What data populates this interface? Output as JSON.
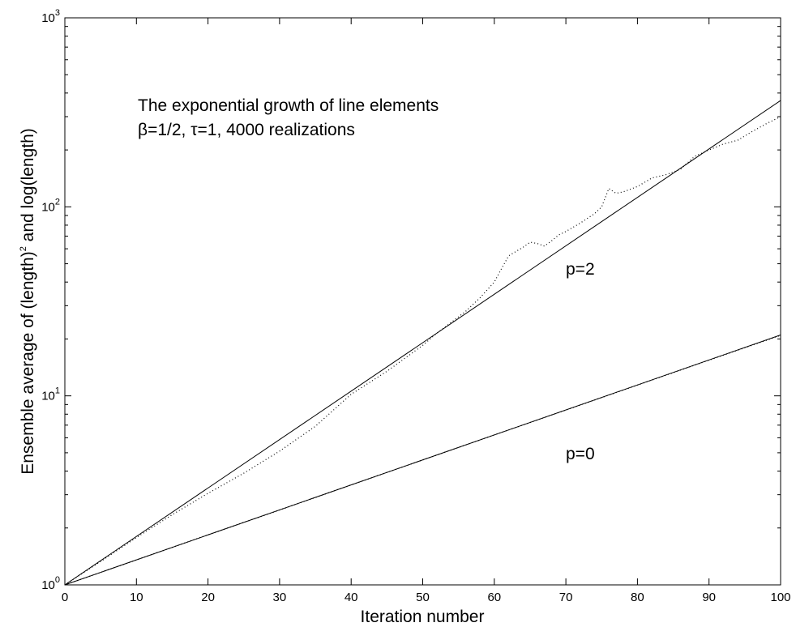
{
  "chart_data": {
    "type": "line",
    "xlabel": "Iteration number",
    "ylabel_parts": [
      "Ensemble average of (length)",
      "2",
      " and log(length)"
    ],
    "y_scale": "log",
    "xlim": [
      0,
      100
    ],
    "ylim": [
      1,
      1000
    ],
    "grid": false,
    "x_ticks": [
      0,
      10,
      20,
      30,
      40,
      50,
      60,
      70,
      80,
      90,
      100
    ],
    "y_ticks": [
      {
        "value": 1,
        "base": "10",
        "exp": "0"
      },
      {
        "value": 10,
        "base": "10",
        "exp": "1"
      },
      {
        "value": 100,
        "base": "10",
        "exp": "2"
      },
      {
        "value": 1000,
        "base": "10",
        "exp": "3"
      }
    ],
    "annotations": {
      "line1": "The exponential growth  of line elements",
      "line2": "β=1/2, τ=1,  4000 realizations",
      "label_p2": "p=2",
      "label_p0": "p=0"
    },
    "series": [
      {
        "style": "solid",
        "x": [
          0,
          100
        ],
        "y": [
          1,
          365
        ]
      },
      {
        "style": "solid",
        "x": [
          0,
          100
        ],
        "y": [
          1,
          21
        ]
      },
      {
        "style": "dotted",
        "x": [
          0,
          5,
          10,
          15,
          20,
          25,
          30,
          35,
          40,
          45,
          50,
          52,
          54,
          56,
          58,
          60,
          61,
          62,
          63,
          64,
          65,
          66,
          67,
          68,
          69,
          70,
          72,
          74,
          75,
          76,
          77,
          78,
          80,
          82,
          84,
          86,
          88,
          90,
          92,
          94,
          96,
          98,
          100
        ],
        "y": [
          1,
          1.33,
          1.78,
          2.35,
          3.05,
          3.9,
          5.1,
          6.9,
          10.2,
          13.5,
          18.5,
          21.5,
          24.5,
          28,
          33,
          40,
          47,
          55,
          58,
          61,
          65,
          64,
          62,
          66,
          71,
          74,
          82,
          92,
          100,
          125,
          118,
          120,
          128,
          142,
          148,
          158,
          185,
          200,
          215,
          225,
          250,
          275,
          300
        ]
      },
      {
        "style": "dotted",
        "x": [
          0,
          10,
          20,
          30,
          40,
          50,
          60,
          70,
          80,
          90,
          100
        ],
        "y": [
          1,
          1.355,
          1.84,
          2.49,
          3.38,
          4.58,
          6.21,
          8.41,
          11.4,
          15.45,
          20.9
        ]
      }
    ]
  }
}
